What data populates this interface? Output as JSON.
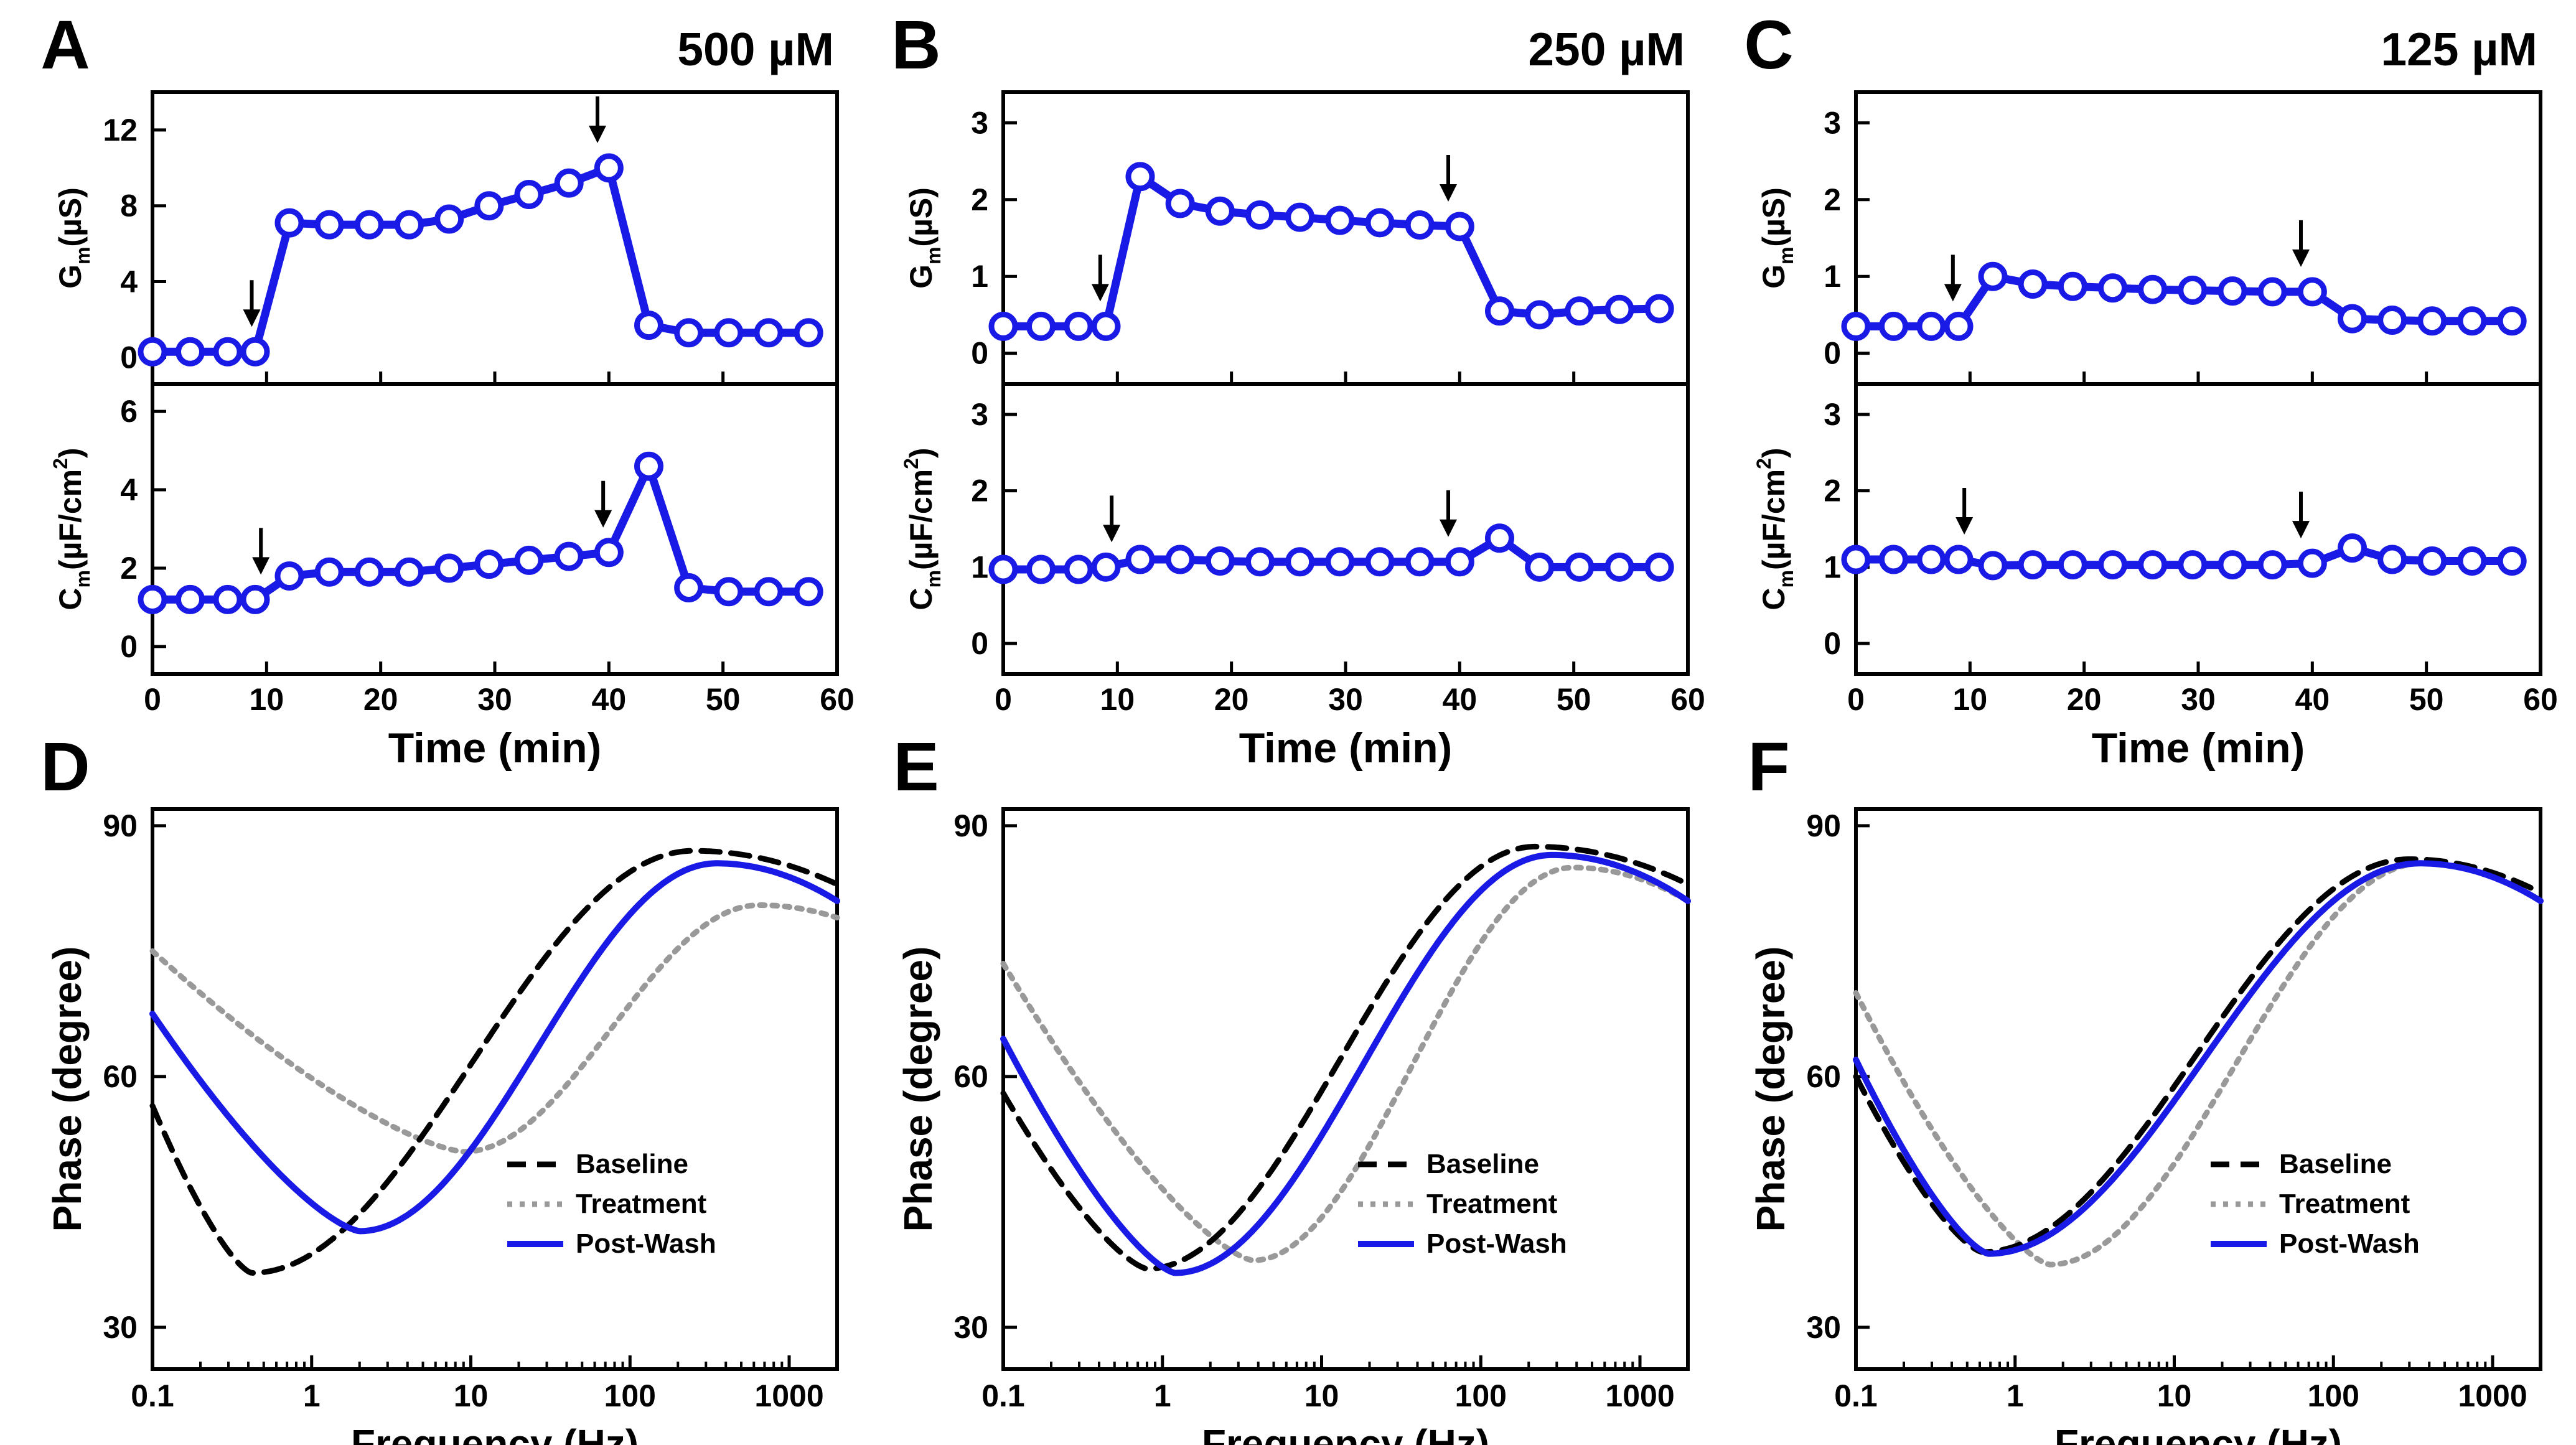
{
  "figure": {
    "time_panels": {
      "A": {
        "letter": "A",
        "conc": "500 µM",
        "gm": {
          "ylim": [
            -1.4,
            14
          ],
          "yticks": [
            0,
            4,
            8,
            12
          ],
          "values": [
            0.3,
            0.3,
            0.3,
            0.3,
            7.1,
            7.0,
            7.0,
            7.0,
            7.3,
            8.0,
            8.6,
            9.2,
            10.0,
            1.7,
            1.3,
            1.3,
            1.3,
            1.3
          ],
          "arrows": [
            8.7,
            39
          ]
        },
        "cm": {
          "ylim": [
            -0.7,
            6.7
          ],
          "yticks": [
            0,
            2,
            4,
            6
          ],
          "values": [
            1.2,
            1.2,
            1.2,
            1.2,
            1.8,
            1.9,
            1.9,
            1.9,
            2.0,
            2.1,
            2.2,
            2.3,
            2.4,
            4.6,
            1.5,
            1.4,
            1.4,
            1.4
          ],
          "arrows": [
            9.5,
            39.5
          ]
        }
      },
      "B": {
        "letter": "B",
        "conc": "250 µM",
        "gm": {
          "ylim": [
            -0.4,
            3.4
          ],
          "yticks": [
            0,
            1,
            2,
            3
          ],
          "values": [
            0.35,
            0.35,
            0.35,
            0.35,
            2.3,
            1.95,
            1.85,
            1.8,
            1.77,
            1.73,
            1.7,
            1.67,
            1.65,
            0.55,
            0.5,
            0.55,
            0.57,
            0.58
          ],
          "arrows": [
            8.5,
            39
          ]
        },
        "cm": {
          "ylim": [
            -0.4,
            3.4
          ],
          "yticks": [
            0,
            1,
            2,
            3
          ],
          "values": [
            0.97,
            0.97,
            0.97,
            1.0,
            1.1,
            1.1,
            1.08,
            1.07,
            1.07,
            1.07,
            1.07,
            1.07,
            1.07,
            1.38,
            1.0,
            1.0,
            1.0,
            1.0
          ],
          "arrows": [
            9.5,
            39
          ]
        }
      },
      "C": {
        "letter": "C",
        "conc": "125 µM",
        "gm": {
          "ylim": [
            -0.4,
            3.4
          ],
          "yticks": [
            0,
            1,
            2,
            3
          ],
          "values": [
            0.35,
            0.35,
            0.35,
            0.35,
            1.0,
            0.9,
            0.87,
            0.85,
            0.83,
            0.82,
            0.81,
            0.8,
            0.8,
            0.45,
            0.43,
            0.42,
            0.42,
            0.42
          ],
          "arrows": [
            8.5,
            39
          ]
        },
        "cm": {
          "ylim": [
            -0.4,
            3.4
          ],
          "yticks": [
            0,
            1,
            2,
            3
          ],
          "values": [
            1.1,
            1.1,
            1.1,
            1.1,
            1.02,
            1.03,
            1.03,
            1.03,
            1.03,
            1.03,
            1.03,
            1.03,
            1.05,
            1.25,
            1.1,
            1.08,
            1.08,
            1.08
          ],
          "arrows": [
            9.5,
            39
          ]
        }
      }
    },
    "phase_panels": {
      "D": {
        "letter": "D",
        "baseline": {
          "fmin": 0.42,
          "pmin": 36.5,
          "pmax": 87,
          "fmax": 250,
          "phigh": 83
        },
        "treatment": {
          "fmin": 9,
          "pmin": 51,
          "pmax": 80.5,
          "fmax": 650,
          "plow": 75,
          "phigh": 79
        },
        "postwash": {
          "fmin": 2,
          "pmin": 41.5,
          "pmax": 85.5,
          "fmax": 350,
          "plow": 67.5,
          "phigh": 81
        }
      },
      "E": {
        "letter": "E",
        "baseline": {
          "fmin": 0.8,
          "pmin": 37,
          "pmax": 87.5,
          "fmax": 220,
          "plow": 58,
          "phigh": 83
        },
        "treatment": {
          "fmin": 3.7,
          "pmin": 38,
          "pmax": 85,
          "fmax": 380,
          "plow": 73.5,
          "phigh": 81
        },
        "postwash": {
          "fmin": 1.2,
          "pmin": 36.5,
          "pmax": 86.5,
          "fmax": 280,
          "plow": 64.5,
          "phigh": 81
        }
      },
      "F": {
        "letter": "F",
        "baseline": {
          "fmin": 0.62,
          "pmin": 39,
          "pmax": 86,
          "fmax": 300,
          "plow": 60,
          "phigh": 82
        },
        "treatment": {
          "fmin": 1.65,
          "pmin": 37.5,
          "pmax": 85.5,
          "fmax": 360,
          "plow": 70,
          "phigh": 81
        },
        "postwash": {
          "fmin": 0.68,
          "pmin": 38.8,
          "pmax": 85.5,
          "fmax": 350,
          "plow": 62,
          "phigh": 81
        }
      }
    }
  },
  "labels": {
    "time_xlabel": "Time (min)",
    "gm_ylabel": "G",
    "gm_sub": "m",
    "gm_unit": "(µS)",
    "cm_ylabel": "C",
    "cm_sub": "m",
    "cm_unit": "(µF/cm",
    "cm_sup": "2",
    "cm_close": ")",
    "freq_xlabel": "Frequency (Hz)",
    "phase_ylabel": "Phase (degree)",
    "legend": [
      "Baseline",
      "Treatment",
      "Post-Wash"
    ]
  },
  "chart_data": [
    {
      "type": "line",
      "panel": "A-top",
      "title": "500 µM",
      "xlabel": "Time (min)",
      "ylabel": "Gm (µS)",
      "x": [
        0,
        3.3,
        6.6,
        9,
        12,
        15.5,
        19,
        22.5,
        26,
        29.5,
        33,
        36.5,
        40,
        43.5,
        47,
        50.5,
        54,
        57.5
      ],
      "values": [
        0.3,
        0.3,
        0.3,
        0.3,
        7.1,
        7.0,
        7.0,
        7.0,
        7.3,
        8.0,
        8.6,
        9.2,
        10.0,
        1.7,
        1.3,
        1.3,
        1.3,
        1.3
      ],
      "xlim": [
        0,
        60
      ],
      "ylim": [
        -1.4,
        14
      ]
    },
    {
      "type": "line",
      "panel": "A-bottom",
      "xlabel": "Time (min)",
      "ylabel": "Cm (µF/cm2)",
      "x": [
        0,
        3.3,
        6.6,
        9,
        12,
        15.5,
        19,
        22.5,
        26,
        29.5,
        33,
        36.5,
        40,
        43.5,
        47,
        50.5,
        54,
        57.5
      ],
      "values": [
        1.2,
        1.2,
        1.2,
        1.2,
        1.8,
        1.9,
        1.9,
        1.9,
        2.0,
        2.1,
        2.2,
        2.3,
        2.4,
        4.6,
        1.5,
        1.4,
        1.4,
        1.4
      ],
      "xlim": [
        0,
        60
      ],
      "ylim": [
        -0.7,
        6.7
      ]
    },
    {
      "type": "line",
      "panel": "B-top",
      "title": "250 µM",
      "xlabel": "Time (min)",
      "ylabel": "Gm (µS)",
      "x": [
        0,
        3.3,
        6.6,
        9,
        12,
        15.5,
        19,
        22.5,
        26,
        29.5,
        33,
        36.5,
        40,
        43.5,
        47,
        50.5,
        54,
        57.5
      ],
      "values": [
        0.35,
        0.35,
        0.35,
        0.35,
        2.3,
        1.95,
        1.85,
        1.8,
        1.77,
        1.73,
        1.7,
        1.67,
        1.65,
        0.55,
        0.5,
        0.55,
        0.57,
        0.58
      ],
      "xlim": [
        0,
        60
      ],
      "ylim": [
        -0.4,
        3.4
      ]
    },
    {
      "type": "line",
      "panel": "B-bottom",
      "xlabel": "Time (min)",
      "ylabel": "Cm (µF/cm2)",
      "x": [
        0,
        3.3,
        6.6,
        9,
        12,
        15.5,
        19,
        22.5,
        26,
        29.5,
        33,
        36.5,
        40,
        43.5,
        47,
        50.5,
        54,
        57.5
      ],
      "values": [
        0.97,
        0.97,
        0.97,
        1.0,
        1.1,
        1.1,
        1.08,
        1.07,
        1.07,
        1.07,
        1.07,
        1.07,
        1.07,
        1.38,
        1.0,
        1.0,
        1.0,
        1.0
      ],
      "xlim": [
        0,
        60
      ],
      "ylim": [
        -0.4,
        3.4
      ]
    },
    {
      "type": "line",
      "panel": "C-top",
      "title": "125 µM",
      "xlabel": "Time (min)",
      "ylabel": "Gm (µS)",
      "x": [
        0,
        3.3,
        6.6,
        9,
        12,
        15.5,
        19,
        22.5,
        26,
        29.5,
        33,
        36.5,
        40,
        43.5,
        47,
        50.5,
        54,
        57.5
      ],
      "values": [
        0.35,
        0.35,
        0.35,
        0.35,
        1.0,
        0.9,
        0.87,
        0.85,
        0.83,
        0.82,
        0.81,
        0.8,
        0.8,
        0.45,
        0.43,
        0.42,
        0.42,
        0.42
      ],
      "xlim": [
        0,
        60
      ],
      "ylim": [
        -0.4,
        3.4
      ]
    },
    {
      "type": "line",
      "panel": "C-bottom",
      "xlabel": "Time (min)",
      "ylabel": "Cm (µF/cm2)",
      "x": [
        0,
        3.3,
        6.6,
        9,
        12,
        15.5,
        19,
        22.5,
        26,
        29.5,
        33,
        36.5,
        40,
        43.5,
        47,
        50.5,
        54,
        57.5
      ],
      "values": [
        1.1,
        1.1,
        1.1,
        1.1,
        1.02,
        1.03,
        1.03,
        1.03,
        1.03,
        1.03,
        1.03,
        1.03,
        1.05,
        1.25,
        1.1,
        1.08,
        1.08,
        1.08
      ],
      "xlim": [
        0,
        60
      ],
      "ylim": [
        -0.4,
        3.4
      ]
    },
    {
      "type": "line",
      "panel": "D",
      "xlabel": "Frequency (Hz)",
      "ylabel": "Phase (degree)",
      "xscale": "log",
      "xlim": [
        0.1,
        2000
      ],
      "ylim": [
        25,
        92
      ],
      "xticks": [
        "0.1",
        "1",
        "10",
        "100",
        "1000"
      ],
      "yticks": [
        30,
        60,
        90
      ],
      "series": [
        {
          "name": "Baseline",
          "style": "dashed",
          "min": [
            0.42,
            36.5
          ],
          "max": [
            250,
            87
          ]
        },
        {
          "name": "Treatment",
          "style": "dotted",
          "min": [
            9,
            51
          ],
          "max": [
            650,
            80.5
          ]
        },
        {
          "name": "Post-Wash",
          "style": "solid",
          "min": [
            2,
            41.5
          ],
          "max": [
            350,
            85.5
          ]
        }
      ]
    },
    {
      "type": "line",
      "panel": "E",
      "xlabel": "Frequency (Hz)",
      "ylabel": "Phase (degree)",
      "xscale": "log",
      "xlim": [
        0.1,
        2000
      ],
      "ylim": [
        25,
        92
      ],
      "xticks": [
        "0.1",
        "1",
        "10",
        "100",
        "1000"
      ],
      "yticks": [
        30,
        60,
        90
      ],
      "series": [
        {
          "name": "Baseline",
          "style": "dashed",
          "min": [
            0.8,
            37
          ],
          "max": [
            220,
            87.5
          ]
        },
        {
          "name": "Treatment",
          "style": "dotted",
          "min": [
            3.7,
            38
          ],
          "max": [
            380,
            85
          ]
        },
        {
          "name": "Post-Wash",
          "style": "solid",
          "min": [
            1.2,
            36.5
          ],
          "max": [
            280,
            86.5
          ]
        }
      ]
    },
    {
      "type": "line",
      "panel": "F",
      "xlabel": "Frequency (Hz)",
      "ylabel": "Phase (degree)",
      "xscale": "log",
      "xlim": [
        0.1,
        2000
      ],
      "ylim": [
        25,
        92
      ],
      "xticks": [
        "0.1",
        "1",
        "10",
        "100",
        "1000"
      ],
      "yticks": [
        30,
        60,
        90
      ],
      "series": [
        {
          "name": "Baseline",
          "style": "dashed",
          "min": [
            0.62,
            39
          ],
          "max": [
            300,
            86
          ]
        },
        {
          "name": "Treatment",
          "style": "dotted",
          "min": [
            1.65,
            37.5
          ],
          "max": [
            360,
            85.5
          ]
        },
        {
          "name": "Post-Wash",
          "style": "solid",
          "min": [
            0.68,
            38.8
          ],
          "max": [
            350,
            85.5
          ]
        }
      ]
    }
  ]
}
